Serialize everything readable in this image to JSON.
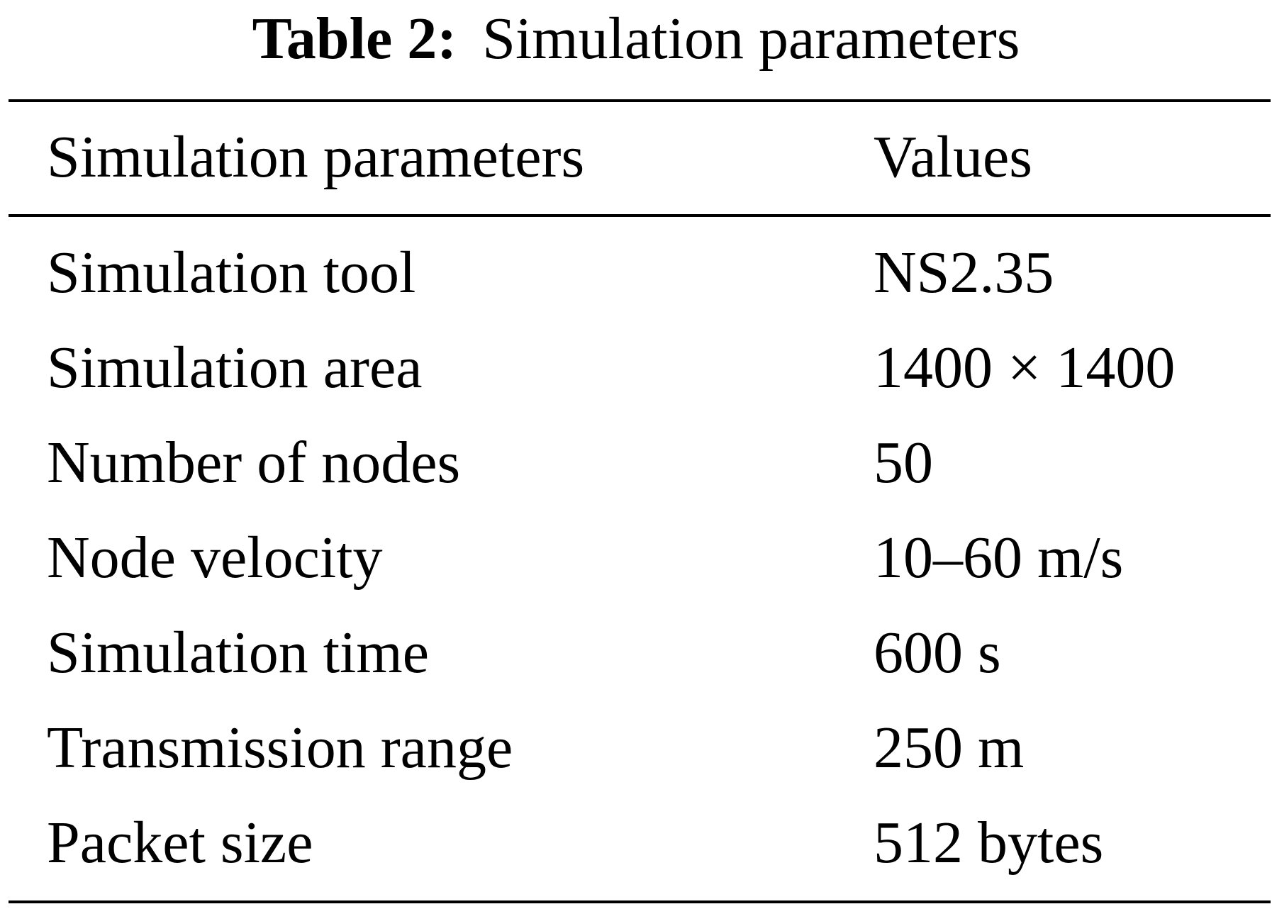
{
  "caption": {
    "label": "Table 2:",
    "title": "Simulation parameters"
  },
  "table": {
    "headers": [
      "Simulation parameters",
      "Values"
    ],
    "rows": [
      [
        "Simulation tool",
        "NS2.35"
      ],
      [
        "Simulation area",
        "1400 × 1400"
      ],
      [
        "Number of nodes",
        "50"
      ],
      [
        "Node velocity",
        "10–60 m/s"
      ],
      [
        "Simulation time",
        "600 s"
      ],
      [
        "Transmission range",
        "250 m"
      ],
      [
        "Packet size",
        "512 bytes"
      ]
    ]
  }
}
